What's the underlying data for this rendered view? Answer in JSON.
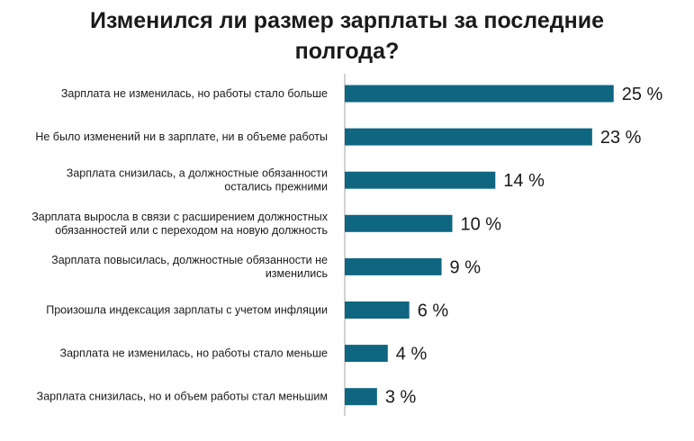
{
  "chart_data": {
    "type": "bar",
    "orientation": "horizontal",
    "title": "Изменился ли размер зарплаты за последние полгода?",
    "title_lines": [
      "Изменился ли размер зарплаты за последние",
      "полгода?"
    ],
    "categories": [
      "Зарплата не изменилась, но работы стало больше",
      "Не было изменений ни в зарплате, ни в объеме работы",
      "Зарплата снизилась, а должностные обязанности остались прежними",
      "Зарплата выросла в связи с расширением должностных обязанностей или с переходом на новую должность",
      "Зарплата повысилась, должностные обязанности не изменились",
      "Произошла индексация зарплаты с учетом инфляции",
      "Зарплата не изменилась, но работы стало меньше",
      "Зарплата снизилась, но и объем работы стал меньшим"
    ],
    "category_lines": [
      [
        "Зарплата не изменилась, но работы стало больше"
      ],
      [
        "Не было изменений ни в зарплате, ни в объеме работы"
      ],
      [
        "Зарплата снизилась, а должностные обязанности",
        "остались прежними"
      ],
      [
        "Зарплата выросла в связи с расширением должностных",
        "обязанностей или с переходом на новую должность"
      ],
      [
        "Зарплата повысилась, должностные обязанности не",
        "изменились"
      ],
      [
        "Произошла индексация зарплаты с учетом  инфляции"
      ],
      [
        "Зарплата не изменилась, но работы стало меньше"
      ],
      [
        "Зарплата снизилась, но и объем работы стал меньшим"
      ]
    ],
    "values": [
      25,
      23,
      14,
      10,
      9,
      6,
      4,
      3
    ],
    "value_labels": [
      "25 %",
      "23 %",
      "14 %",
      "10 %",
      "9 %",
      "6 %",
      "4 %",
      "3 %"
    ],
    "unit": "%",
    "xlim": [
      0,
      27
    ],
    "xlabel": "",
    "ylabel": "",
    "grid": false,
    "legend": "none",
    "bar_color": "#0e6680"
  }
}
